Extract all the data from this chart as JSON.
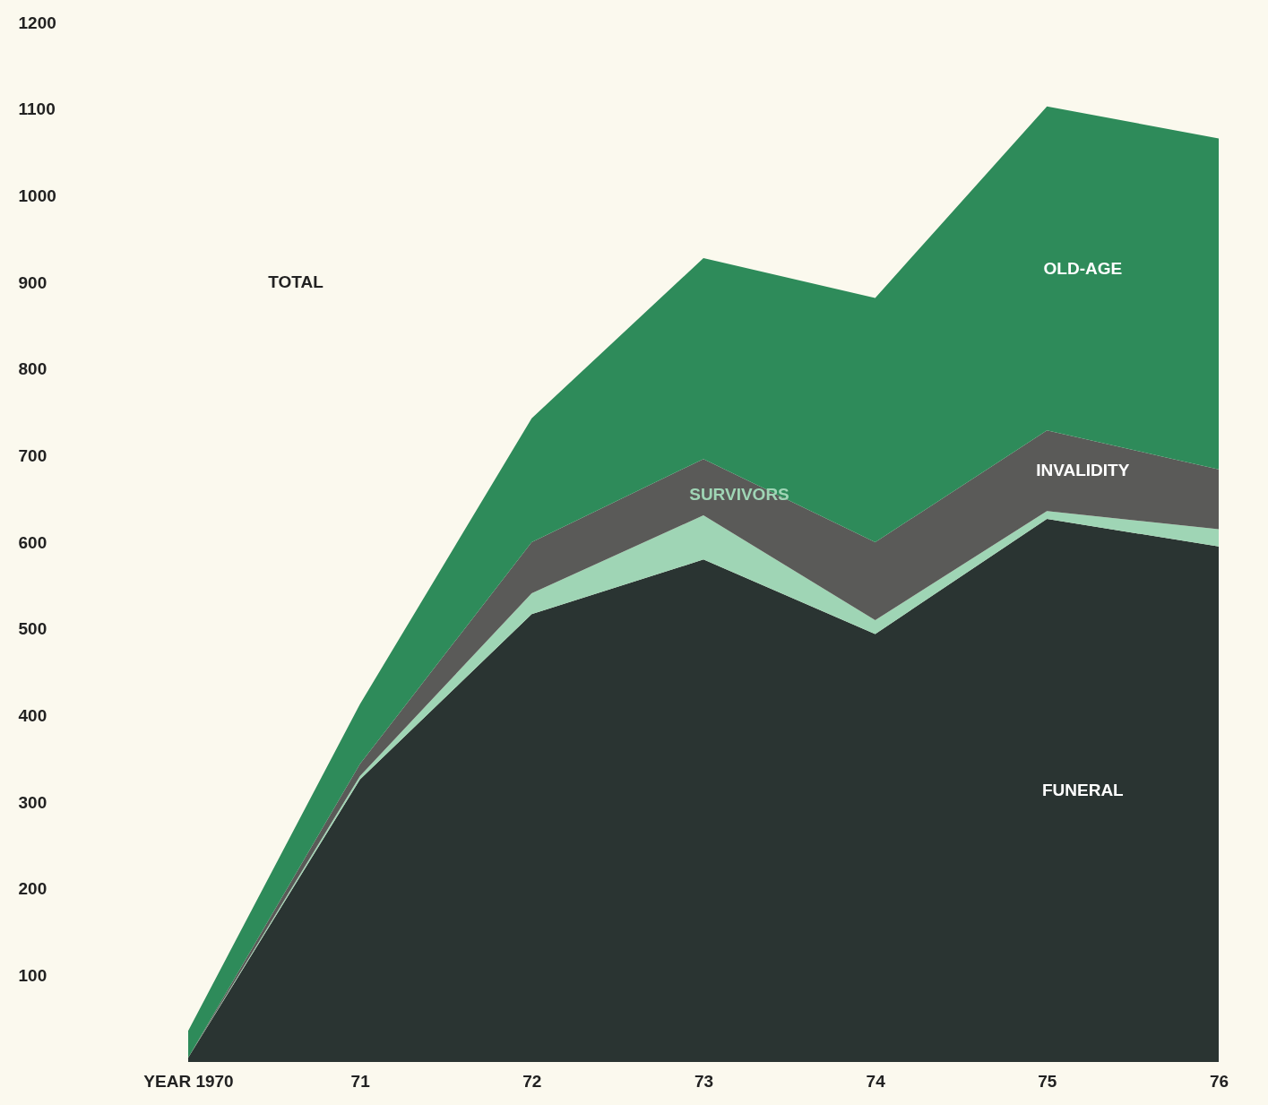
{
  "chart_data": {
    "type": "area",
    "stacked": true,
    "categories": [
      "YEAR 1970",
      "71",
      "72",
      "73",
      "74",
      "75",
      "76"
    ],
    "series": [
      {
        "name": "FUNERAL",
        "color": "#2a3432",
        "values": [
          5,
          326,
          517,
          580,
          494,
          627,
          595
        ]
      },
      {
        "name": "SURVIVORS",
        "color": "#9fd5b5",
        "values": [
          0,
          4,
          24,
          51,
          16,
          9,
          20
        ]
      },
      {
        "name": "INVALIDITY",
        "color": "#5a5a58",
        "values": [
          0,
          14,
          59,
          65,
          90,
          93,
          69
        ]
      },
      {
        "name": "OLD-AGE",
        "color": "#2e8b5a",
        "values": [
          31,
          69,
          143,
          232,
          282,
          374,
          382
        ]
      }
    ],
    "ylim": [
      0,
      1200
    ],
    "yticks": [
      100,
      200,
      300,
      400,
      500,
      600,
      700,
      800,
      900,
      1000,
      1100,
      1200
    ],
    "grid": false,
    "legend": false,
    "annotations": [
      "TOTAL"
    ]
  }
}
